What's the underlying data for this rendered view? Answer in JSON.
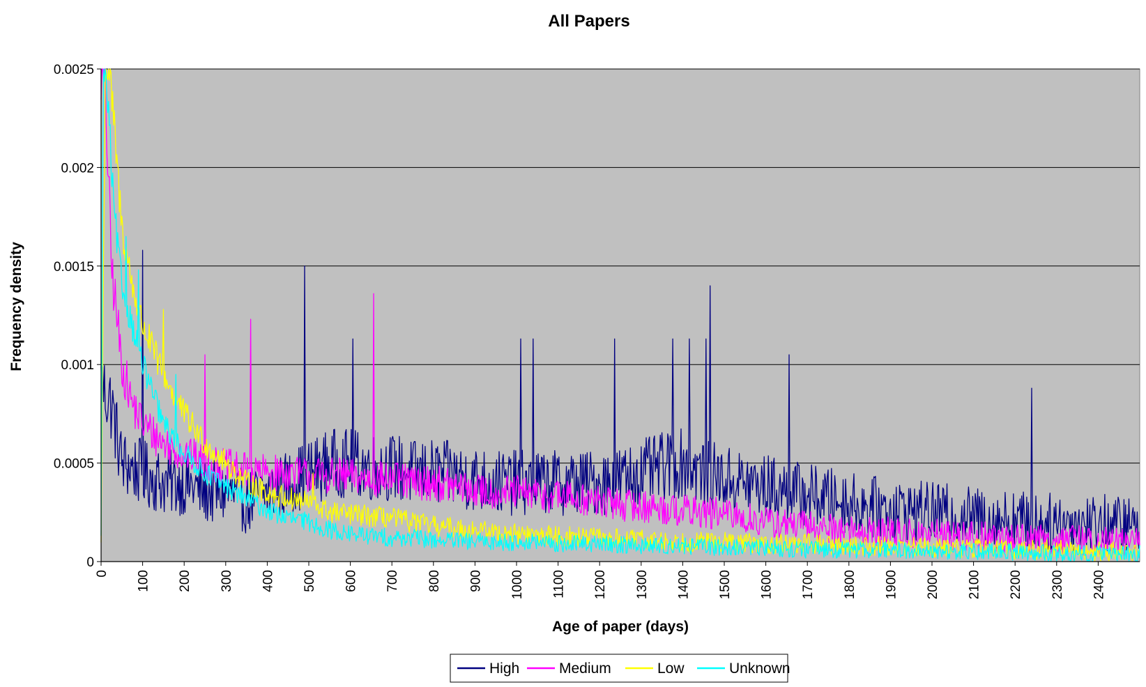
{
  "chart_data": {
    "type": "line",
    "title": "All Papers",
    "xlabel": "Age of paper (days)",
    "ylabel": "Frequency density",
    "xlim": [
      0,
      2500
    ],
    "ylim": [
      0,
      0.0025
    ],
    "x_ticks": [
      "0",
      "100",
      "200",
      "300",
      "400",
      "500",
      "600",
      "700",
      "800",
      "900",
      "1000",
      "1100",
      "1200",
      "1300",
      "1400",
      "1500",
      "1600",
      "1700",
      "1800",
      "1900",
      "2000",
      "2100",
      "2200",
      "2300",
      "2400"
    ],
    "y_ticks": [
      "0",
      "0.0005",
      "0.001",
      "0.0015",
      "0.002",
      "0.0025"
    ],
    "grid": "horizontal",
    "legend_position": "bottom",
    "plot_background": "#c0c0c0",
    "series": [
      {
        "name": "High",
        "color": "#000080",
        "x": [
          0,
          25,
          50,
          100,
          150,
          200,
          250,
          300,
          350,
          400,
          450,
          500,
          550,
          600,
          650,
          700,
          750,
          800,
          850,
          900,
          950,
          1000,
          1050,
          1100,
          1150,
          1200,
          1250,
          1300,
          1350,
          1400,
          1450,
          1500,
          1550,
          1600,
          1650,
          1700,
          1750,
          1800,
          1850,
          1900,
          1950,
          2000,
          2050,
          2100,
          2150,
          2200,
          2250,
          2300,
          2350,
          2400,
          2450,
          2500
        ],
        "values": [
          0.0009,
          0.0008,
          0.0005,
          0.00045,
          0.0004,
          0.0004,
          0.00035,
          0.00035,
          0.0003,
          0.00035,
          0.0004,
          0.00045,
          0.0005,
          0.0005,
          0.00048,
          0.00048,
          0.00045,
          0.00045,
          0.00044,
          0.00042,
          0.0004,
          0.0004,
          0.0004,
          0.0004,
          0.0004,
          0.0004,
          0.00042,
          0.00045,
          0.00048,
          0.0005,
          0.00045,
          0.00042,
          0.0004,
          0.00038,
          0.00036,
          0.00034,
          0.00032,
          0.0003,
          0.00028,
          0.00027,
          0.00026,
          0.00025,
          0.00024,
          0.00023,
          0.00022,
          0.00022,
          0.0002,
          0.0002,
          0.0002,
          0.0002,
          0.00019,
          0.00018
        ],
        "noise": 0.00022,
        "spikes": [
          [
            490,
            0.0015
          ],
          [
            1465,
            0.0014
          ],
          [
            100,
            0.00158
          ],
          [
            605,
            0.00113
          ],
          [
            1010,
            0.00113
          ],
          [
            1040,
            0.00113
          ],
          [
            1235,
            0.00113
          ],
          [
            1375,
            0.00113
          ],
          [
            1415,
            0.00113
          ],
          [
            1455,
            0.00113
          ],
          [
            1655,
            0.00105
          ],
          [
            2240,
            0.00088
          ]
        ]
      },
      {
        "name": "Medium",
        "color": "#ff00ff",
        "x": [
          0,
          10,
          25,
          50,
          75,
          100,
          150,
          200,
          250,
          300,
          350,
          400,
          450,
          500,
          550,
          600,
          650,
          700,
          750,
          800,
          850,
          900,
          950,
          1000,
          1050,
          1100,
          1150,
          1200,
          1250,
          1300,
          1350,
          1400,
          1450,
          1500,
          1550,
          1600,
          1650,
          1700,
          1750,
          1800,
          1850,
          1900,
          1950,
          2000,
          2050,
          2100,
          2150,
          2200,
          2250,
          2300,
          2350,
          2400,
          2450,
          2500
        ],
        "values": [
          0.0025,
          0.0024,
          0.0015,
          0.001,
          0.0008,
          0.0007,
          0.0006,
          0.00055,
          0.0005,
          0.00048,
          0.00046,
          0.00045,
          0.00045,
          0.00044,
          0.00044,
          0.00043,
          0.00042,
          0.00042,
          0.0004,
          0.0004,
          0.00038,
          0.00036,
          0.00035,
          0.00035,
          0.00034,
          0.00033,
          0.00032,
          0.0003,
          0.00029,
          0.00028,
          0.00027,
          0.00026,
          0.00025,
          0.00024,
          0.00022,
          0.0002,
          0.00019,
          0.00018,
          0.00017,
          0.00016,
          0.00015,
          0.00015,
          0.00014,
          0.00014,
          0.00013,
          0.00013,
          0.00012,
          0.00012,
          0.00012,
          0.00011,
          0.00011,
          0.0001,
          0.0001,
          0.0001
        ],
        "noise": 0.00012,
        "spikes": [
          [
            655,
            0.00136
          ],
          [
            360,
            0.00123
          ],
          [
            250,
            0.00105
          ]
        ]
      },
      {
        "name": "Low",
        "color": "#ffff00",
        "x": [
          0,
          10,
          20,
          35,
          50,
          75,
          100,
          150,
          200,
          250,
          300,
          350,
          400,
          450,
          500,
          550,
          600,
          650,
          700,
          750,
          800,
          850,
          900,
          950,
          1000,
          1100,
          1200,
          1300,
          1400,
          1500,
          1600,
          1700,
          1800,
          1900,
          2000,
          2100,
          2200,
          2300,
          2400,
          2500
        ],
        "values": [
          0.0001,
          0.0025,
          0.0025,
          0.0021,
          0.0017,
          0.0014,
          0.0012,
          0.00095,
          0.00075,
          0.0006,
          0.0005,
          0.0004,
          0.00035,
          0.00032,
          0.0003,
          0.00025,
          0.00024,
          0.00023,
          0.00022,
          0.0002,
          0.00018,
          0.00017,
          0.00016,
          0.00015,
          0.00014,
          0.00013,
          0.00012,
          0.00011,
          0.0001,
          0.0001,
          9e-05,
          9e-05,
          8e-05,
          8e-05,
          7e-05,
          7e-05,
          6e-05,
          6e-05,
          5e-05,
          5e-05
        ],
        "noise": 8e-05,
        "spikes": [
          [
            150,
            0.00128
          ],
          [
            510,
            0.00045
          ]
        ]
      },
      {
        "name": "Unknown",
        "color": "#00ffff",
        "x": [
          0,
          5,
          10,
          20,
          30,
          40,
          50,
          75,
          100,
          125,
          150,
          200,
          250,
          300,
          350,
          400,
          450,
          500,
          550,
          600,
          650,
          700,
          750,
          800,
          900,
          1000,
          1100,
          1200,
          1300,
          1400,
          1500,
          1600,
          1700,
          1800,
          1900,
          2000,
          2100,
          2200,
          2300,
          2400,
          2500
        ],
        "values": [
          0.0001,
          0.0025,
          0.0025,
          0.0022,
          0.0018,
          0.0016,
          0.0014,
          0.0012,
          0.001,
          0.00085,
          0.0007,
          0.00055,
          0.00045,
          0.00038,
          0.00032,
          0.00026,
          0.00022,
          0.0002,
          0.00016,
          0.00014,
          0.00013,
          0.00012,
          0.00012,
          0.00011,
          0.0001,
          0.0001,
          9e-05,
          9e-05,
          8e-05,
          8e-05,
          7e-05,
          7e-05,
          6e-05,
          6e-05,
          6e-05,
          5e-05,
          5e-05,
          5e-05,
          4e-05,
          4e-05,
          4e-05
        ],
        "noise": 7e-05,
        "spikes": [
          [
            60,
            0.00165
          ],
          [
            90,
            0.00148
          ],
          [
            180,
            0.00095
          ]
        ]
      }
    ]
  }
}
